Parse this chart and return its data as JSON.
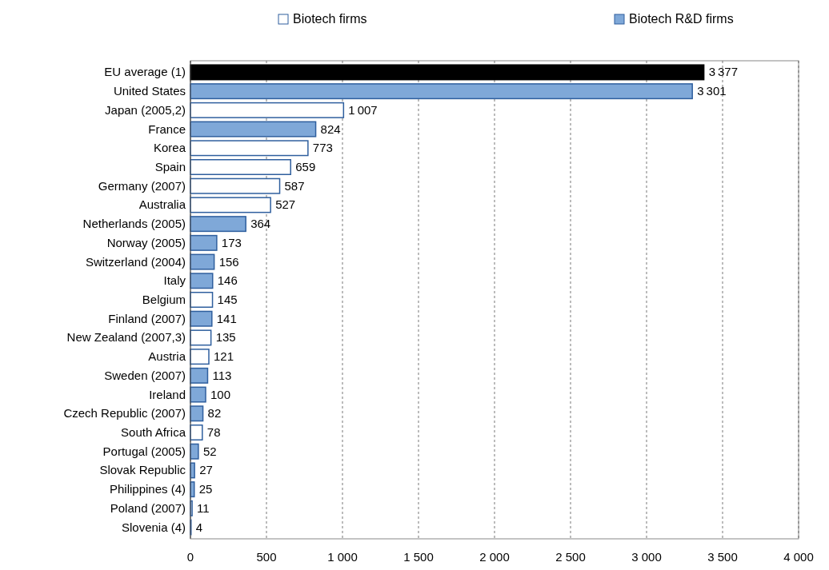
{
  "chart_data": {
    "type": "bar",
    "orientation": "horizontal",
    "legend": "top",
    "grid": "x",
    "data_labels": true,
    "categories": [
      "EU average (1)",
      "United States",
      "Japan (2005,2)",
      "France",
      "Korea",
      "Spain",
      "Germany (2007)",
      "Australia",
      "Netherlands (2005)",
      "Norway (2005)",
      "Switzerland (2004)",
      "Italy",
      "Belgium",
      "Finland (2007)",
      "New Zealand (2007,3)",
      "Austria",
      "Sweden (2007)",
      "Ireland",
      "Czech Republic (2007)",
      "South Africa",
      "Portugal (2005)",
      "Slovak Republic",
      "Philippines (4)",
      "Poland (2007)",
      "Slovenia (4)"
    ],
    "series": [
      {
        "name": "Biotech firms",
        "color": "#ffffff",
        "values": [
          null,
          null,
          1007,
          null,
          773,
          659,
          587,
          527,
          null,
          null,
          null,
          null,
          145,
          null,
          135,
          121,
          null,
          null,
          null,
          78,
          null,
          null,
          null,
          11,
          4
        ]
      },
      {
        "name": "Biotech R&D firms",
        "color": "#7fa8d8",
        "values": [
          null,
          3301,
          null,
          824,
          null,
          null,
          null,
          null,
          364,
          173,
          156,
          146,
          null,
          141,
          null,
          null,
          113,
          100,
          82,
          null,
          52,
          27,
          25,
          null,
          null
        ]
      },
      {
        "color": "#000000",
        "values": [
          3377,
          null,
          null,
          null,
          null,
          null,
          null,
          null,
          null,
          null,
          null,
          null,
          null,
          null,
          null,
          null,
          null,
          null,
          null,
          null,
          null,
          null,
          null,
          null,
          null
        ]
      }
    ],
    "xlim": [
      0,
      4000
    ],
    "xticks": [
      0,
      500,
      {
        "value": 1000,
        "label": "1 000"
      },
      {
        "value": 1500,
        "label": "1 500"
      },
      {
        "value": 2000,
        "label": "2 000"
      },
      {
        "value": 2500,
        "label": "2 500"
      },
      {
        "value": 3000,
        "label": "3 000"
      },
      {
        "value": 3500,
        "label": "3 500"
      },
      {
        "value": 4000,
        "label": "4 000"
      }
    ]
  }
}
